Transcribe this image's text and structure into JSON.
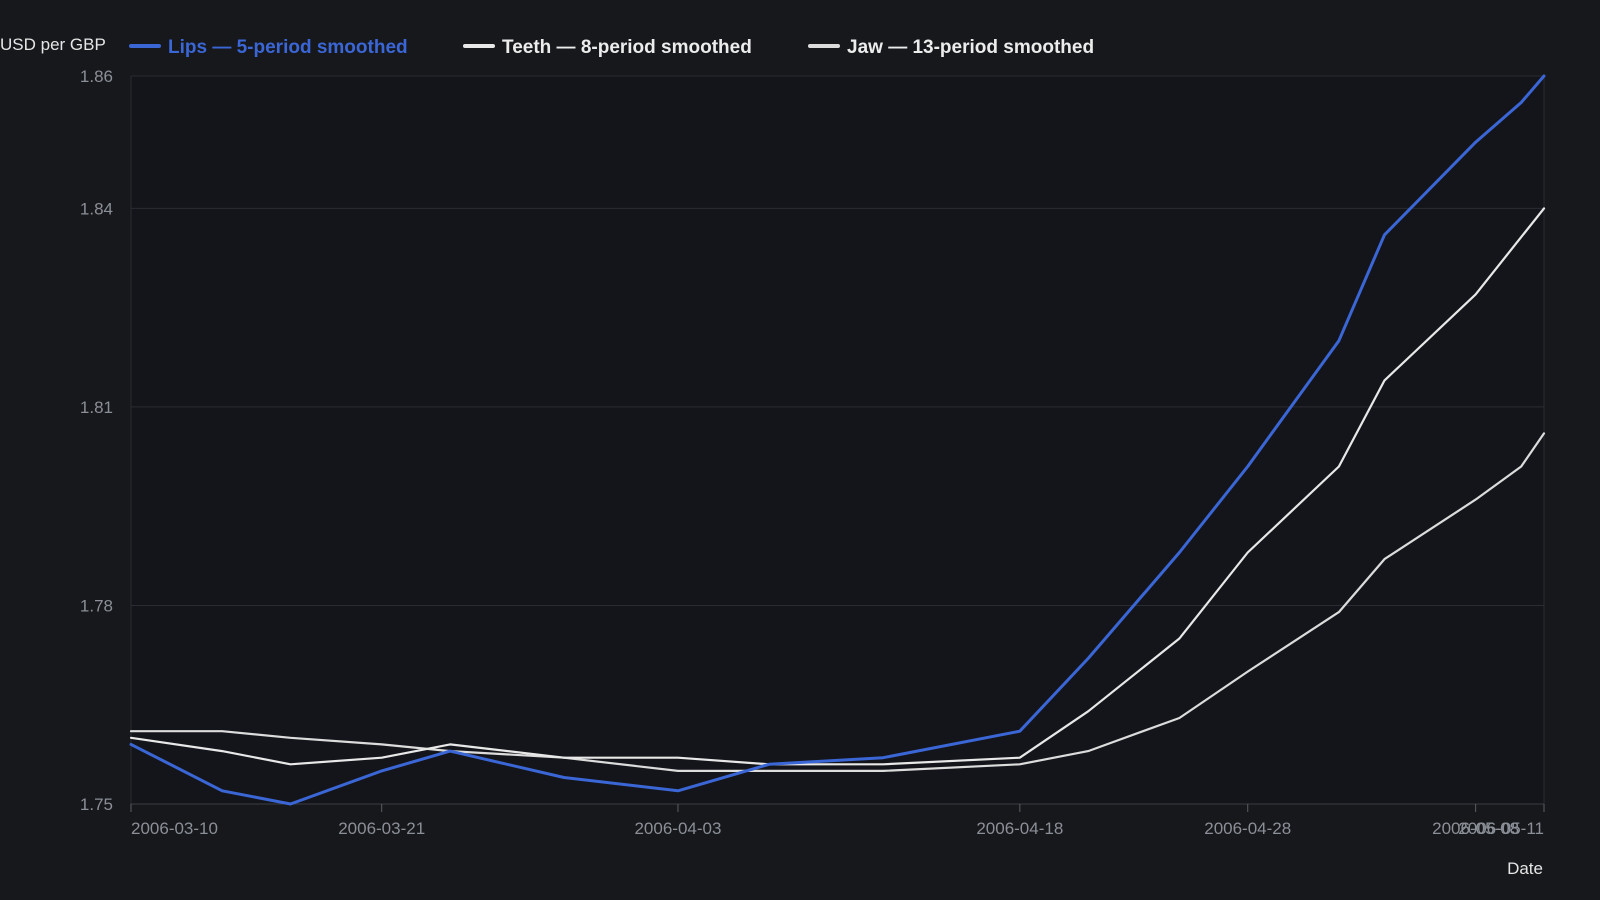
{
  "chart_data": {
    "type": "line",
    "ylabel": "USD per GBP",
    "xlabel": "Date",
    "ylim": [
      1.75,
      1.86
    ],
    "yticks": [
      1.75,
      1.78,
      1.81,
      1.84,
      1.86
    ],
    "ytick_labels": [
      "1.75",
      "1.78",
      "1.81",
      "1.84",
      "1.86"
    ],
    "xlim": [
      "2006-03-10",
      "2006-05-11"
    ],
    "xticks": [
      "2006-03-10",
      "2006-03-21",
      "2006-04-03",
      "2006-04-18",
      "2006-04-28",
      "2006-05-08",
      "2006-05-11"
    ],
    "grid": true,
    "legend_position": "top",
    "series": [
      {
        "name": "Lips — 5-period smoothed",
        "color": "#3a66d6",
        "x": [
          "2006-03-10",
          "2006-03-14",
          "2006-03-17",
          "2006-03-21",
          "2006-03-24",
          "2006-03-29",
          "2006-04-03",
          "2006-04-07",
          "2006-04-12",
          "2006-04-18",
          "2006-04-21",
          "2006-04-25",
          "2006-04-28",
          "2006-05-02",
          "2006-05-04",
          "2006-05-08",
          "2006-05-10",
          "2006-05-11"
        ],
        "y": [
          1.759,
          1.752,
          1.75,
          1.755,
          1.758,
          1.754,
          1.752,
          1.756,
          1.757,
          1.761,
          1.772,
          1.788,
          1.801,
          1.82,
          1.836,
          1.85,
          1.856,
          1.86
        ]
      },
      {
        "name": "Teeth — 8-period smoothed",
        "color": "#e8e8e8",
        "x": [
          "2006-03-10",
          "2006-03-14",
          "2006-03-17",
          "2006-03-21",
          "2006-03-24",
          "2006-03-29",
          "2006-04-03",
          "2006-04-07",
          "2006-04-12",
          "2006-04-18",
          "2006-04-21",
          "2006-04-25",
          "2006-04-28",
          "2006-05-02",
          "2006-05-04",
          "2006-05-08",
          "2006-05-11"
        ],
        "y": [
          1.76,
          1.758,
          1.756,
          1.757,
          1.759,
          1.757,
          1.757,
          1.756,
          1.756,
          1.757,
          1.764,
          1.775,
          1.788,
          1.801,
          1.814,
          1.827,
          1.84
        ]
      },
      {
        "name": "Jaw — 13-period smoothed",
        "color": "#dcdcdc",
        "x": [
          "2006-03-10",
          "2006-03-14",
          "2006-03-17",
          "2006-03-21",
          "2006-03-24",
          "2006-03-29",
          "2006-04-03",
          "2006-04-07",
          "2006-04-12",
          "2006-04-18",
          "2006-04-21",
          "2006-04-25",
          "2006-04-28",
          "2006-05-02",
          "2006-05-04",
          "2006-05-08",
          "2006-05-10",
          "2006-05-11"
        ],
        "y": [
          1.761,
          1.761,
          1.76,
          1.759,
          1.758,
          1.757,
          1.755,
          1.755,
          1.755,
          1.756,
          1.758,
          1.763,
          1.77,
          1.779,
          1.787,
          1.796,
          1.801,
          1.806
        ]
      }
    ]
  }
}
